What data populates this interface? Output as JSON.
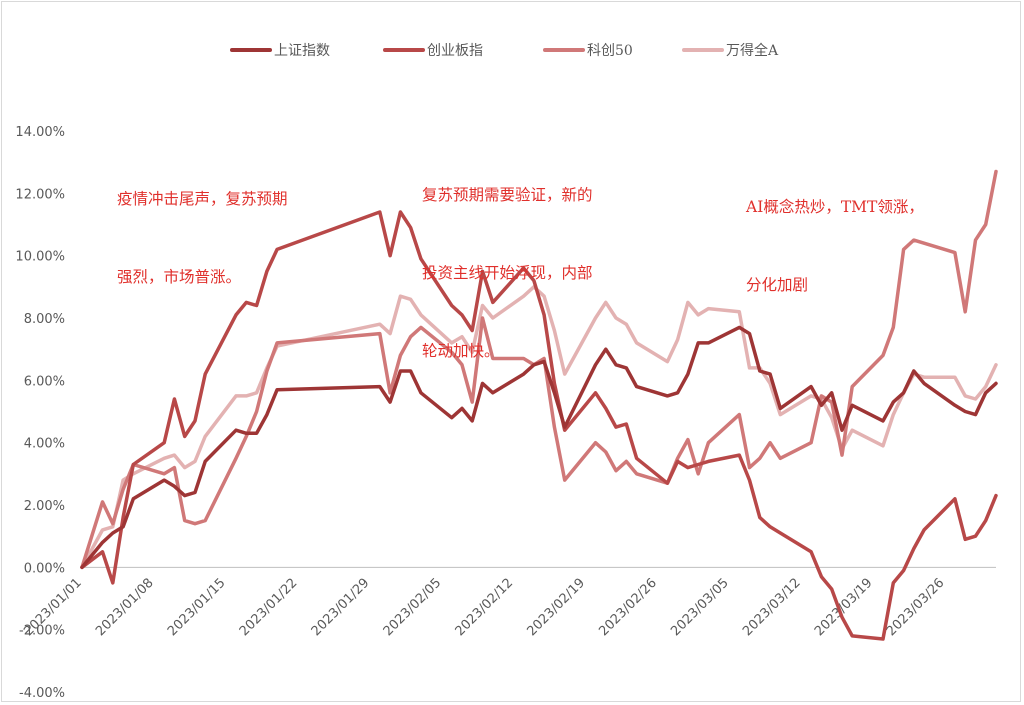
{
  "chart_data": {
    "type": "line",
    "title": "",
    "xlabel": "",
    "ylabel": "",
    "ylim": [
      -4,
      14
    ],
    "y_tick_step": 2,
    "y_tick_format": "percent_2dp",
    "grid": false,
    "legend_position": "top",
    "x_tick_labels": [
      "2023/01/01",
      "2023/01/08",
      "2023/01/15",
      "2023/01/22",
      "2023/01/29",
      "2023/02/05",
      "2023/02/12",
      "2023/02/19",
      "2023/02/26",
      "2023/03/05",
      "2023/03/12",
      "2023/03/19",
      "2023/03/26"
    ],
    "series": [
      {
        "name": "上证指数",
        "color": "#9e3535",
        "points": [
          [
            "2023/01/01",
            0.0
          ],
          [
            "2023/01/03",
            0.8
          ],
          [
            "2023/01/04",
            1.1
          ],
          [
            "2023/01/05",
            1.3
          ],
          [
            "2023/01/06",
            2.2
          ],
          [
            "2023/01/09",
            2.8
          ],
          [
            "2023/01/10",
            2.6
          ],
          [
            "2023/01/11",
            2.3
          ],
          [
            "2023/01/12",
            2.4
          ],
          [
            "2023/01/13",
            3.4
          ],
          [
            "2023/01/16",
            4.4
          ],
          [
            "2023/01/17",
            4.3
          ],
          [
            "2023/01/18",
            4.3
          ],
          [
            "2023/01/19",
            4.9
          ],
          [
            "2023/01/20",
            5.7
          ],
          [
            "2023/01/30",
            5.8
          ],
          [
            "2023/01/31",
            5.3
          ],
          [
            "2023/02/01",
            6.3
          ],
          [
            "2023/02/02",
            6.3
          ],
          [
            "2023/02/03",
            5.6
          ],
          [
            "2023/02/06",
            4.8
          ],
          [
            "2023/02/07",
            5.1
          ],
          [
            "2023/02/08",
            4.7
          ],
          [
            "2023/02/09",
            5.9
          ],
          [
            "2023/02/10",
            5.6
          ],
          [
            "2023/02/13",
            6.2
          ],
          [
            "2023/02/14",
            6.5
          ],
          [
            "2023/02/15",
            6.6
          ],
          [
            "2023/02/16",
            5.6
          ],
          [
            "2023/02/17",
            4.5
          ],
          [
            "2023/02/20",
            6.5
          ],
          [
            "2023/02/21",
            7.0
          ],
          [
            "2023/02/22",
            6.5
          ],
          [
            "2023/02/23",
            6.4
          ],
          [
            "2023/02/24",
            5.8
          ],
          [
            "2023/02/27",
            5.5
          ],
          [
            "2023/02/28",
            5.6
          ],
          [
            "2023/03/01",
            6.2
          ],
          [
            "2023/03/02",
            7.2
          ],
          [
            "2023/03/03",
            7.2
          ],
          [
            "2023/03/06",
            7.7
          ],
          [
            "2023/03/07",
            7.5
          ],
          [
            "2023/03/08",
            6.3
          ],
          [
            "2023/03/09",
            6.2
          ],
          [
            "2023/03/10",
            5.1
          ],
          [
            "2023/03/13",
            5.8
          ],
          [
            "2023/03/14",
            5.2
          ],
          [
            "2023/03/15",
            5.6
          ],
          [
            "2023/03/16",
            4.4
          ],
          [
            "2023/03/17",
            5.2
          ],
          [
            "2023/03/20",
            4.7
          ],
          [
            "2023/03/21",
            5.3
          ],
          [
            "2023/03/22",
            5.6
          ],
          [
            "2023/03/23",
            6.3
          ],
          [
            "2023/03/24",
            5.9
          ],
          [
            "2023/03/27",
            5.2
          ],
          [
            "2023/03/28",
            5.0
          ],
          [
            "2023/03/29",
            4.9
          ],
          [
            "2023/03/30",
            5.6
          ],
          [
            "2023/03/31",
            5.9
          ]
        ]
      },
      {
        "name": "创业板指",
        "color": "#b84848",
        "points": [
          [
            "2023/01/01",
            0.0
          ],
          [
            "2023/01/03",
            0.5
          ],
          [
            "2023/01/04",
            -0.5
          ],
          [
            "2023/01/05",
            1.6
          ],
          [
            "2023/01/06",
            3.3
          ],
          [
            "2023/01/09",
            4.0
          ],
          [
            "2023/01/10",
            5.4
          ],
          [
            "2023/01/11",
            4.2
          ],
          [
            "2023/01/12",
            4.7
          ],
          [
            "2023/01/13",
            6.2
          ],
          [
            "2023/01/16",
            8.1
          ],
          [
            "2023/01/17",
            8.5
          ],
          [
            "2023/01/18",
            8.4
          ],
          [
            "2023/01/19",
            9.5
          ],
          [
            "2023/01/20",
            10.2
          ],
          [
            "2023/01/30",
            11.4
          ],
          [
            "2023/01/31",
            10.0
          ],
          [
            "2023/02/01",
            11.4
          ],
          [
            "2023/02/02",
            10.9
          ],
          [
            "2023/02/03",
            9.9
          ],
          [
            "2023/02/06",
            8.4
          ],
          [
            "2023/02/07",
            8.1
          ],
          [
            "2023/02/08",
            7.6
          ],
          [
            "2023/02/09",
            9.5
          ],
          [
            "2023/02/10",
            8.5
          ],
          [
            "2023/02/13",
            9.6
          ],
          [
            "2023/02/14",
            9.2
          ],
          [
            "2023/02/15",
            8.1
          ],
          [
            "2023/02/16",
            5.9
          ],
          [
            "2023/02/17",
            4.4
          ],
          [
            "2023/02/20",
            5.6
          ],
          [
            "2023/02/21",
            5.1
          ],
          [
            "2023/02/22",
            4.5
          ],
          [
            "2023/02/23",
            4.6
          ],
          [
            "2023/02/24",
            3.5
          ],
          [
            "2023/02/27",
            2.7
          ],
          [
            "2023/02/28",
            3.4
          ],
          [
            "2023/03/01",
            3.2
          ],
          [
            "2023/03/02",
            3.3
          ],
          [
            "2023/03/03",
            3.4
          ],
          [
            "2023/03/06",
            3.6
          ],
          [
            "2023/03/07",
            2.8
          ],
          [
            "2023/03/08",
            1.6
          ],
          [
            "2023/03/09",
            1.3
          ],
          [
            "2023/03/10",
            1.1
          ],
          [
            "2023/03/13",
            0.5
          ],
          [
            "2023/03/14",
            -0.3
          ],
          [
            "2023/03/15",
            -0.7
          ],
          [
            "2023/03/16",
            -1.6
          ],
          [
            "2023/03/17",
            -2.2
          ],
          [
            "2023/03/20",
            -2.3
          ],
          [
            "2023/03/21",
            -0.5
          ],
          [
            "2023/03/22",
            -0.1
          ],
          [
            "2023/03/23",
            0.6
          ],
          [
            "2023/03/24",
            1.2
          ],
          [
            "2023/03/27",
            2.2
          ],
          [
            "2023/03/28",
            0.9
          ],
          [
            "2023/03/29",
            1.0
          ],
          [
            "2023/03/30",
            1.5
          ],
          [
            "2023/03/31",
            2.3
          ]
        ]
      },
      {
        "name": "科创50",
        "color": "#d07878",
        "points": [
          [
            "2023/01/01",
            0.0
          ],
          [
            "2023/01/03",
            2.1
          ],
          [
            "2023/01/04",
            1.4
          ],
          [
            "2023/01/05",
            2.5
          ],
          [
            "2023/01/06",
            3.3
          ],
          [
            "2023/01/09",
            3.0
          ],
          [
            "2023/01/10",
            3.2
          ],
          [
            "2023/01/11",
            1.5
          ],
          [
            "2023/01/12",
            1.4
          ],
          [
            "2023/01/13",
            1.5
          ],
          [
            "2023/01/16",
            3.5
          ],
          [
            "2023/01/17",
            4.2
          ],
          [
            "2023/01/18",
            5.0
          ],
          [
            "2023/01/19",
            6.3
          ],
          [
            "2023/01/20",
            7.2
          ],
          [
            "2023/01/30",
            7.5
          ],
          [
            "2023/01/31",
            5.6
          ],
          [
            "2023/02/01",
            6.8
          ],
          [
            "2023/02/02",
            7.4
          ],
          [
            "2023/02/03",
            7.7
          ],
          [
            "2023/02/06",
            6.9
          ],
          [
            "2023/02/07",
            6.5
          ],
          [
            "2023/02/08",
            5.3
          ],
          [
            "2023/02/09",
            8.0
          ],
          [
            "2023/02/10",
            6.7
          ],
          [
            "2023/02/13",
            6.7
          ],
          [
            "2023/02/14",
            6.5
          ],
          [
            "2023/02/15",
            6.7
          ],
          [
            "2023/02/16",
            4.5
          ],
          [
            "2023/02/17",
            2.8
          ],
          [
            "2023/02/20",
            4.0
          ],
          [
            "2023/02/21",
            3.7
          ],
          [
            "2023/02/22",
            3.1
          ],
          [
            "2023/02/23",
            3.4
          ],
          [
            "2023/02/24",
            3.0
          ],
          [
            "2023/02/27",
            2.7
          ],
          [
            "2023/02/28",
            3.5
          ],
          [
            "2023/03/01",
            4.1
          ],
          [
            "2023/03/02",
            3.0
          ],
          [
            "2023/03/03",
            4.0
          ],
          [
            "2023/03/06",
            4.9
          ],
          [
            "2023/03/07",
            3.2
          ],
          [
            "2023/03/08",
            3.5
          ],
          [
            "2023/03/09",
            4.0
          ],
          [
            "2023/03/10",
            3.5
          ],
          [
            "2023/03/13",
            4.0
          ],
          [
            "2023/03/14",
            5.5
          ],
          [
            "2023/03/15",
            5.3
          ],
          [
            "2023/03/16",
            3.6
          ],
          [
            "2023/03/17",
            5.8
          ],
          [
            "2023/03/20",
            6.8
          ],
          [
            "2023/03/21",
            7.7
          ],
          [
            "2023/03/22",
            10.2
          ],
          [
            "2023/03/23",
            10.5
          ],
          [
            "2023/03/24",
            10.4
          ],
          [
            "2023/03/27",
            10.1
          ],
          [
            "2023/03/28",
            8.2
          ],
          [
            "2023/03/29",
            10.5
          ],
          [
            "2023/03/30",
            11.0
          ],
          [
            "2023/03/31",
            12.7
          ]
        ]
      },
      {
        "name": "万得全A",
        "color": "#e3b2b2",
        "points": [
          [
            "2023/01/01",
            0.0
          ],
          [
            "2023/01/03",
            1.2
          ],
          [
            "2023/01/04",
            1.3
          ],
          [
            "2023/01/05",
            2.8
          ],
          [
            "2023/01/06",
            3.0
          ],
          [
            "2023/01/09",
            3.5
          ],
          [
            "2023/01/10",
            3.6
          ],
          [
            "2023/01/11",
            3.2
          ],
          [
            "2023/01/12",
            3.4
          ],
          [
            "2023/01/13",
            4.2
          ],
          [
            "2023/01/16",
            5.5
          ],
          [
            "2023/01/17",
            5.5
          ],
          [
            "2023/01/18",
            5.6
          ],
          [
            "2023/01/19",
            6.4
          ],
          [
            "2023/01/20",
            7.1
          ],
          [
            "2023/01/30",
            7.8
          ],
          [
            "2023/01/31",
            7.5
          ],
          [
            "2023/02/01",
            8.7
          ],
          [
            "2023/02/02",
            8.6
          ],
          [
            "2023/02/03",
            8.1
          ],
          [
            "2023/02/06",
            7.2
          ],
          [
            "2023/02/07",
            7.4
          ],
          [
            "2023/02/08",
            6.9
          ],
          [
            "2023/02/09",
            8.4
          ],
          [
            "2023/02/10",
            8.0
          ],
          [
            "2023/02/13",
            8.7
          ],
          [
            "2023/02/14",
            9.0
          ],
          [
            "2023/02/15",
            8.7
          ],
          [
            "2023/02/16",
            7.6
          ],
          [
            "2023/02/17",
            6.2
          ],
          [
            "2023/02/20",
            8.0
          ],
          [
            "2023/02/21",
            8.5
          ],
          [
            "2023/02/22",
            8.0
          ],
          [
            "2023/02/23",
            7.8
          ],
          [
            "2023/02/24",
            7.2
          ],
          [
            "2023/02/27",
            6.6
          ],
          [
            "2023/02/28",
            7.3
          ],
          [
            "2023/03/01",
            8.5
          ],
          [
            "2023/03/02",
            8.1
          ],
          [
            "2023/03/03",
            8.3
          ],
          [
            "2023/03/06",
            8.2
          ],
          [
            "2023/03/07",
            6.4
          ],
          [
            "2023/03/08",
            6.4
          ],
          [
            "2023/03/09",
            5.9
          ],
          [
            "2023/03/10",
            4.9
          ],
          [
            "2023/03/13",
            5.5
          ],
          [
            "2023/03/14",
            5.4
          ],
          [
            "2023/03/15",
            4.8
          ],
          [
            "2023/03/16",
            3.8
          ],
          [
            "2023/03/17",
            4.4
          ],
          [
            "2023/03/20",
            3.9
          ],
          [
            "2023/03/21",
            4.9
          ],
          [
            "2023/03/22",
            5.6
          ],
          [
            "2023/03/23",
            6.2
          ],
          [
            "2023/03/24",
            6.1
          ],
          [
            "2023/03/27",
            6.1
          ],
          [
            "2023/03/28",
            5.5
          ],
          [
            "2023/03/29",
            5.4
          ],
          [
            "2023/03/30",
            5.8
          ],
          [
            "2023/03/31",
            6.5
          ]
        ]
      }
    ],
    "annotations": [
      {
        "name": "annotation-phase-1",
        "lines": [
          "疫情冲击尾声，复苏预期",
          "强烈，市场普涨。"
        ],
        "color": "#e0302c"
      },
      {
        "name": "annotation-phase-2",
        "lines": [
          "复苏预期需要验证，新的",
          "投资主线开始浮现，内部",
          "轮动加快。"
        ],
        "color": "#e0302c"
      },
      {
        "name": "annotation-phase-3",
        "lines": [
          "AI概念热炒，TMT领涨，",
          "分化加剧"
        ],
        "color": "#e0302c"
      }
    ]
  }
}
